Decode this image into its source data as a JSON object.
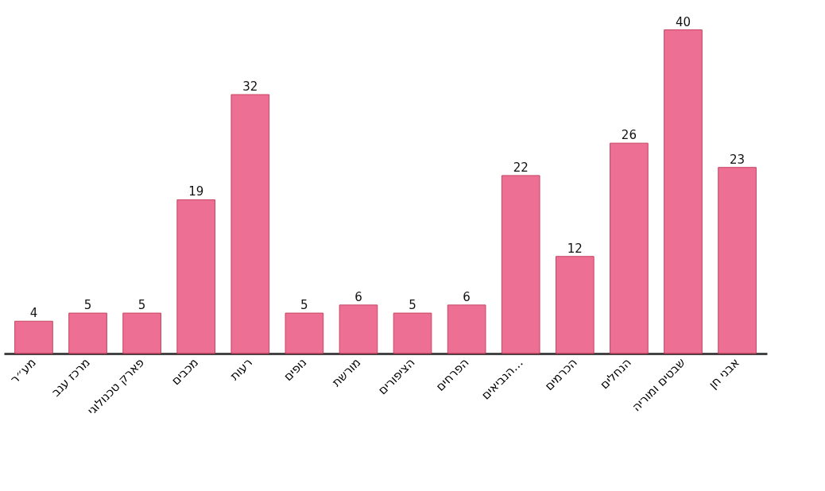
{
  "chart_data": {
    "type": "bar",
    "categories": [
      "מע״ר",
      "מרכז ענב",
      "פארק טכנולוגי",
      "מכבים",
      "רעות",
      "נופים",
      "מורשת",
      "הציפורים",
      "הפרחים",
      "הנביאים…",
      "הכרמים",
      "הנחלים",
      "שבטים ומוריה",
      "אבני חן"
    ],
    "values": [
      4,
      5,
      5,
      19,
      32,
      5,
      6,
      5,
      6,
      22,
      12,
      26,
      40,
      23
    ],
    "color": "#ec6088",
    "data_labels": true
  }
}
